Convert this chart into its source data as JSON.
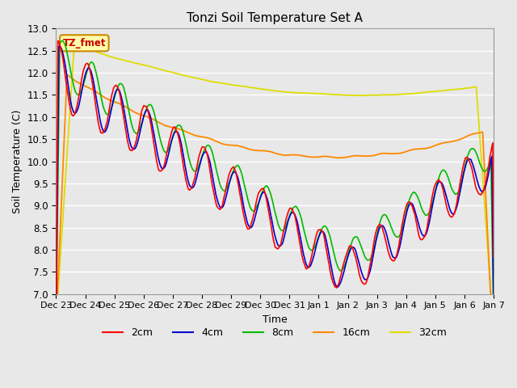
{
  "title": "Tonzi Soil Temperature Set A",
  "xlabel": "Time",
  "ylabel": "Soil Temperature (C)",
  "ylim": [
    7.0,
    13.0
  ],
  "yticks": [
    7.0,
    7.5,
    8.0,
    8.5,
    9.0,
    9.5,
    10.0,
    10.5,
    11.0,
    11.5,
    12.0,
    12.5,
    13.0
  ],
  "xtick_labels": [
    "Dec 23",
    "Dec 24",
    "Dec 25",
    "Dec 26",
    "Dec 27",
    "Dec 28",
    "Dec 29",
    "Dec 30",
    "Dec 31",
    "Jan 1",
    "Jan 2",
    "Jan 3",
    "Jan 4",
    "Jan 5",
    "Jan 6",
    "Jan 7"
  ],
  "series_colors": {
    "2cm": "#ff0000",
    "4cm": "#0000cc",
    "8cm": "#00bb00",
    "16cm": "#ff8800",
    "32cm": "#dddd00"
  },
  "background_color": "#e8e8e8",
  "plot_bg_color": "#e8e8e8",
  "grid_color": "#ffffff",
  "annotation_text": "TZ_fmet",
  "annotation_color": "#cc0000",
  "annotation_bg": "#ffffaa",
  "annotation_border": "#cc8800",
  "n_points": 480
}
